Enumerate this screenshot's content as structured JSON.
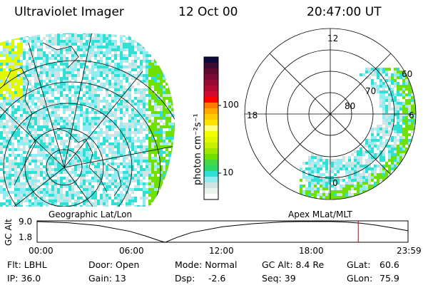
{
  "header": {
    "instrument": "Ultraviolet Imager",
    "date": "12 Oct 00",
    "time": "20:47:00 UT"
  },
  "colorbar": {
    "label": "photon cm⁻²s⁻¹",
    "ticks": [
      "100",
      "10"
    ],
    "colors": [
      "#0c0c3c",
      "#3c0c32",
      "#5c0a32",
      "#7a0a32",
      "#940a32",
      "#b00a32",
      "#d00a30",
      "#ff0000",
      "#ff7800",
      "#ffa800",
      "#ffc800",
      "#ffe400",
      "#ffff80",
      "#f4ff00",
      "#e0f800",
      "#c8f000",
      "#a0e800",
      "#70e000",
      "#44d844",
      "#30d868",
      "#30e0d4",
      "#90eef2",
      "#d0e4e4",
      "#e8f4ee",
      "#ffffff"
    ]
  },
  "left_panel": {
    "label": "Geographic Lat/Lon"
  },
  "right_panel": {
    "label": "Apex MLat/MLT",
    "mlt_labels": {
      "top": "12",
      "left": "18",
      "right": "6",
      "bottom": "0"
    },
    "mlat_labels": [
      "60",
      "70",
      "80"
    ]
  },
  "altitude_plot": {
    "ylabel": "GC Alt",
    "yticks": [
      "9.0",
      "1.8"
    ],
    "xticks": [
      "00:00",
      "06:00",
      "12:00",
      "18:00",
      "23:59"
    ],
    "current_time_hours": 20.78,
    "marker_color": "#cc0000",
    "series_hours": [
      0,
      2,
      4,
      6,
      7,
      8,
      8.3,
      9,
      10,
      12,
      14,
      16,
      17,
      18,
      19,
      20,
      21,
      22,
      23,
      24
    ],
    "series_re": [
      9.0,
      8.6,
      7.6,
      5.6,
      4.0,
      2.2,
      1.8,
      3.4,
      5.2,
      7.2,
      8.3,
      8.9,
      9.0,
      9.0,
      9.0,
      8.8,
      8.4,
      7.7,
      6.8,
      5.8
    ]
  },
  "info": {
    "filter": "Flt: LBHL",
    "ip": "IP: 36.0",
    "door": "Door: Open",
    "gain": "Gain: 13",
    "mode": "Mode: Normal",
    "dsp_label": "Dsp:",
    "dsp_value": "-2.6",
    "gc_alt": "GC Alt: 8.4 Re",
    "seq": "Seq: 39",
    "glat_label": "GLat:",
    "glat_value": "60.6",
    "glon_label": "GLon:",
    "glon_value": "75.9"
  }
}
